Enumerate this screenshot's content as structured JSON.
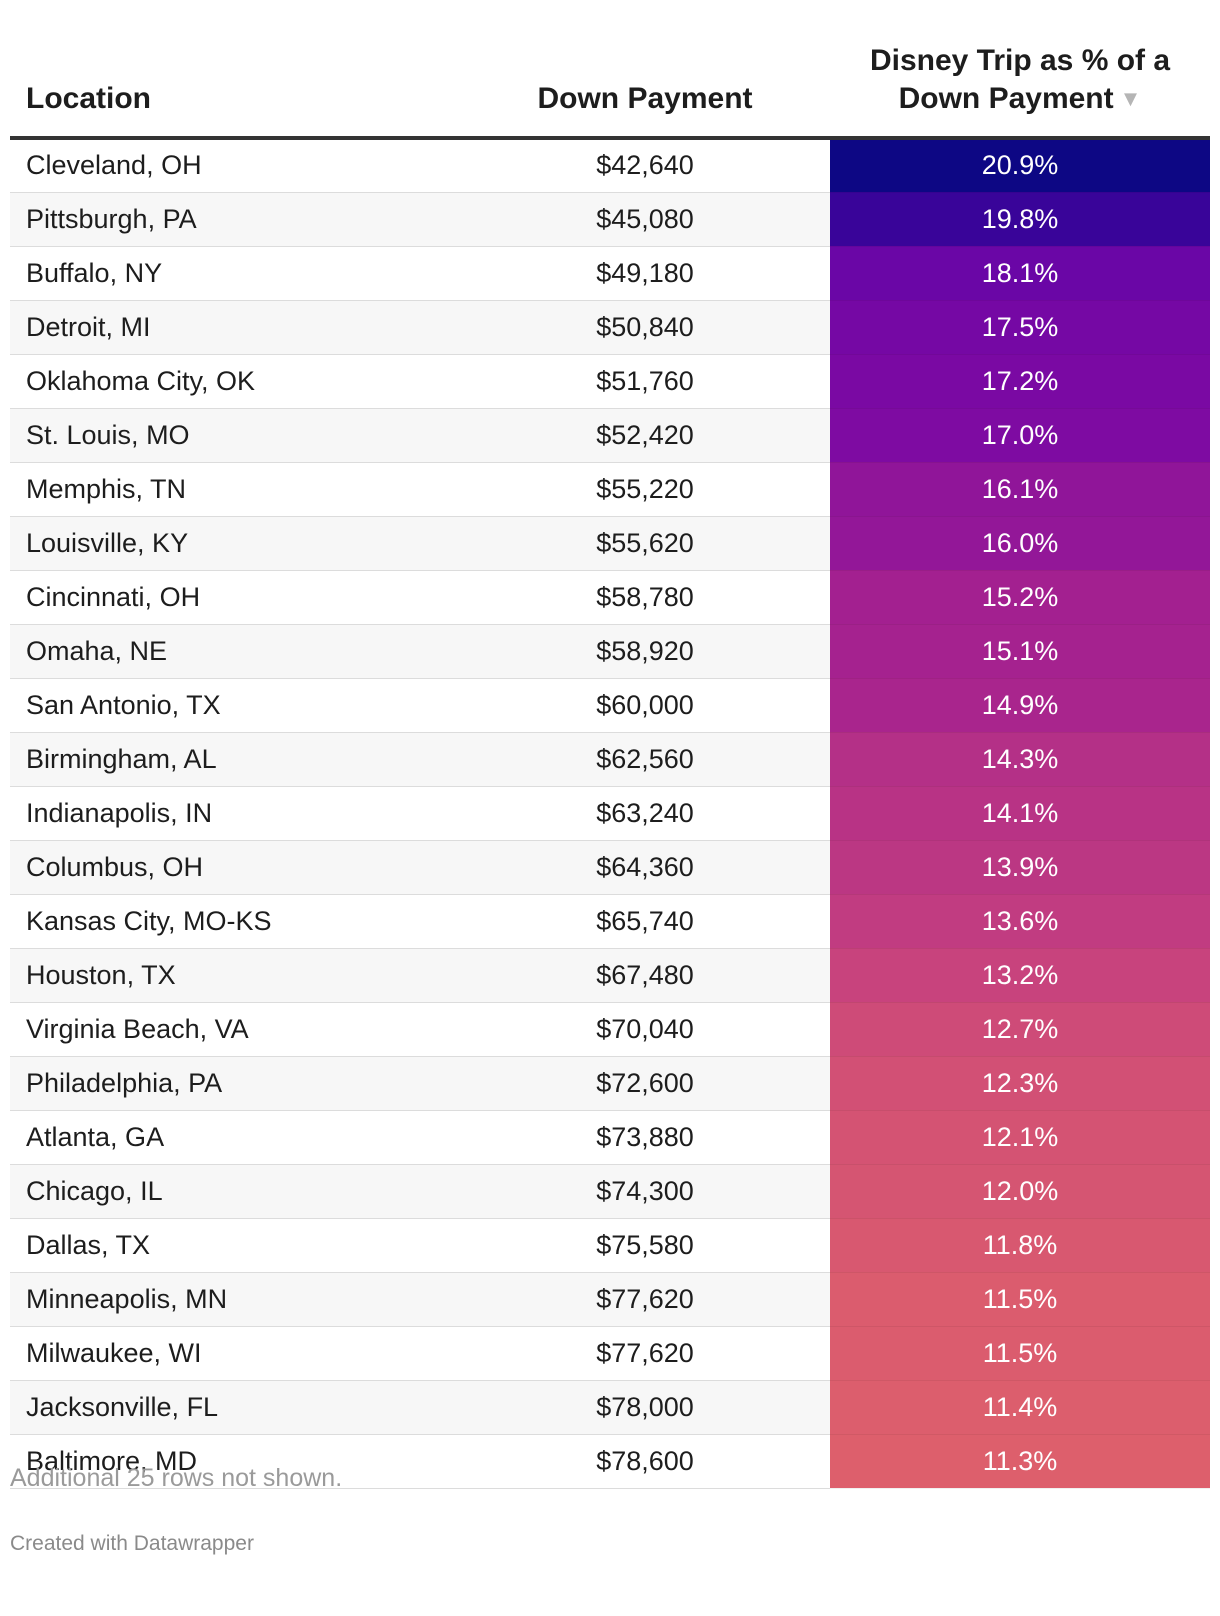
{
  "chart_data": {
    "type": "table",
    "columns": {
      "location": "Location",
      "down_payment": "Down Payment",
      "pct": "Disney Trip as % of a Down Payment"
    },
    "sort_indicator": "▼",
    "rows": [
      {
        "location": "Cleveland, OH",
        "down_payment": "$42,640",
        "pct": "20.9%",
        "value": 20.9
      },
      {
        "location": "Pittsburgh, PA",
        "down_payment": "$45,080",
        "pct": "19.8%",
        "value": 19.8
      },
      {
        "location": "Buffalo, NY",
        "down_payment": "$49,180",
        "pct": "18.1%",
        "value": 18.1
      },
      {
        "location": "Detroit, MI",
        "down_payment": "$50,840",
        "pct": "17.5%",
        "value": 17.5
      },
      {
        "location": "Oklahoma City, OK",
        "down_payment": "$51,760",
        "pct": "17.2%",
        "value": 17.2
      },
      {
        "location": "St. Louis, MO",
        "down_payment": "$52,420",
        "pct": "17.0%",
        "value": 17.0
      },
      {
        "location": "Memphis, TN",
        "down_payment": "$55,220",
        "pct": "16.1%",
        "value": 16.1
      },
      {
        "location": "Louisville, KY",
        "down_payment": "$55,620",
        "pct": "16.0%",
        "value": 16.0
      },
      {
        "location": "Cincinnati, OH",
        "down_payment": "$58,780",
        "pct": "15.2%",
        "value": 15.2
      },
      {
        "location": "Omaha, NE",
        "down_payment": "$58,920",
        "pct": "15.1%",
        "value": 15.1
      },
      {
        "location": "San Antonio, TX",
        "down_payment": "$60,000",
        "pct": "14.9%",
        "value": 14.9
      },
      {
        "location": "Birmingham, AL",
        "down_payment": "$62,560",
        "pct": "14.3%",
        "value": 14.3
      },
      {
        "location": "Indianapolis, IN",
        "down_payment": "$63,240",
        "pct": "14.1%",
        "value": 14.1
      },
      {
        "location": "Columbus, OH",
        "down_payment": "$64,360",
        "pct": "13.9%",
        "value": 13.9
      },
      {
        "location": "Kansas City, MO-KS",
        "down_payment": "$65,740",
        "pct": "13.6%",
        "value": 13.6
      },
      {
        "location": "Houston, TX",
        "down_payment": "$67,480",
        "pct": "13.2%",
        "value": 13.2
      },
      {
        "location": "Virginia Beach, VA",
        "down_payment": "$70,040",
        "pct": "12.7%",
        "value": 12.7
      },
      {
        "location": "Philadelphia, PA",
        "down_payment": "$72,600",
        "pct": "12.3%",
        "value": 12.3
      },
      {
        "location": "Atlanta, GA",
        "down_payment": "$73,880",
        "pct": "12.1%",
        "value": 12.1
      },
      {
        "location": "Chicago, IL",
        "down_payment": "$74,300",
        "pct": "12.0%",
        "value": 12.0
      },
      {
        "location": "Dallas, TX",
        "down_payment": "$75,580",
        "pct": "11.8%",
        "value": 11.8
      },
      {
        "location": "Minneapolis, MN",
        "down_payment": "$77,620",
        "pct": "11.5%",
        "value": 11.5
      },
      {
        "location": "Milwaukee, WI",
        "down_payment": "$77,620",
        "pct": "11.5%",
        "value": 11.5
      },
      {
        "location": "Jacksonville, FL",
        "down_payment": "$78,000",
        "pct": "11.4%",
        "value": 11.4
      },
      {
        "location": "Baltimore, MD",
        "down_payment": "$78,600",
        "pct": "11.3%",
        "value": 11.3
      }
    ],
    "color_scale": {
      "min_value": 11.3,
      "max_value": 20.9,
      "stops": [
        "#dd5f6c",
        "#c8437d",
        "#a4218f",
        "#7d0aa3",
        "#5a02a8",
        "#0d0784"
      ]
    }
  },
  "footer": {
    "note": "Additional 25 rows not shown.",
    "credit": "Created with Datawrapper"
  }
}
